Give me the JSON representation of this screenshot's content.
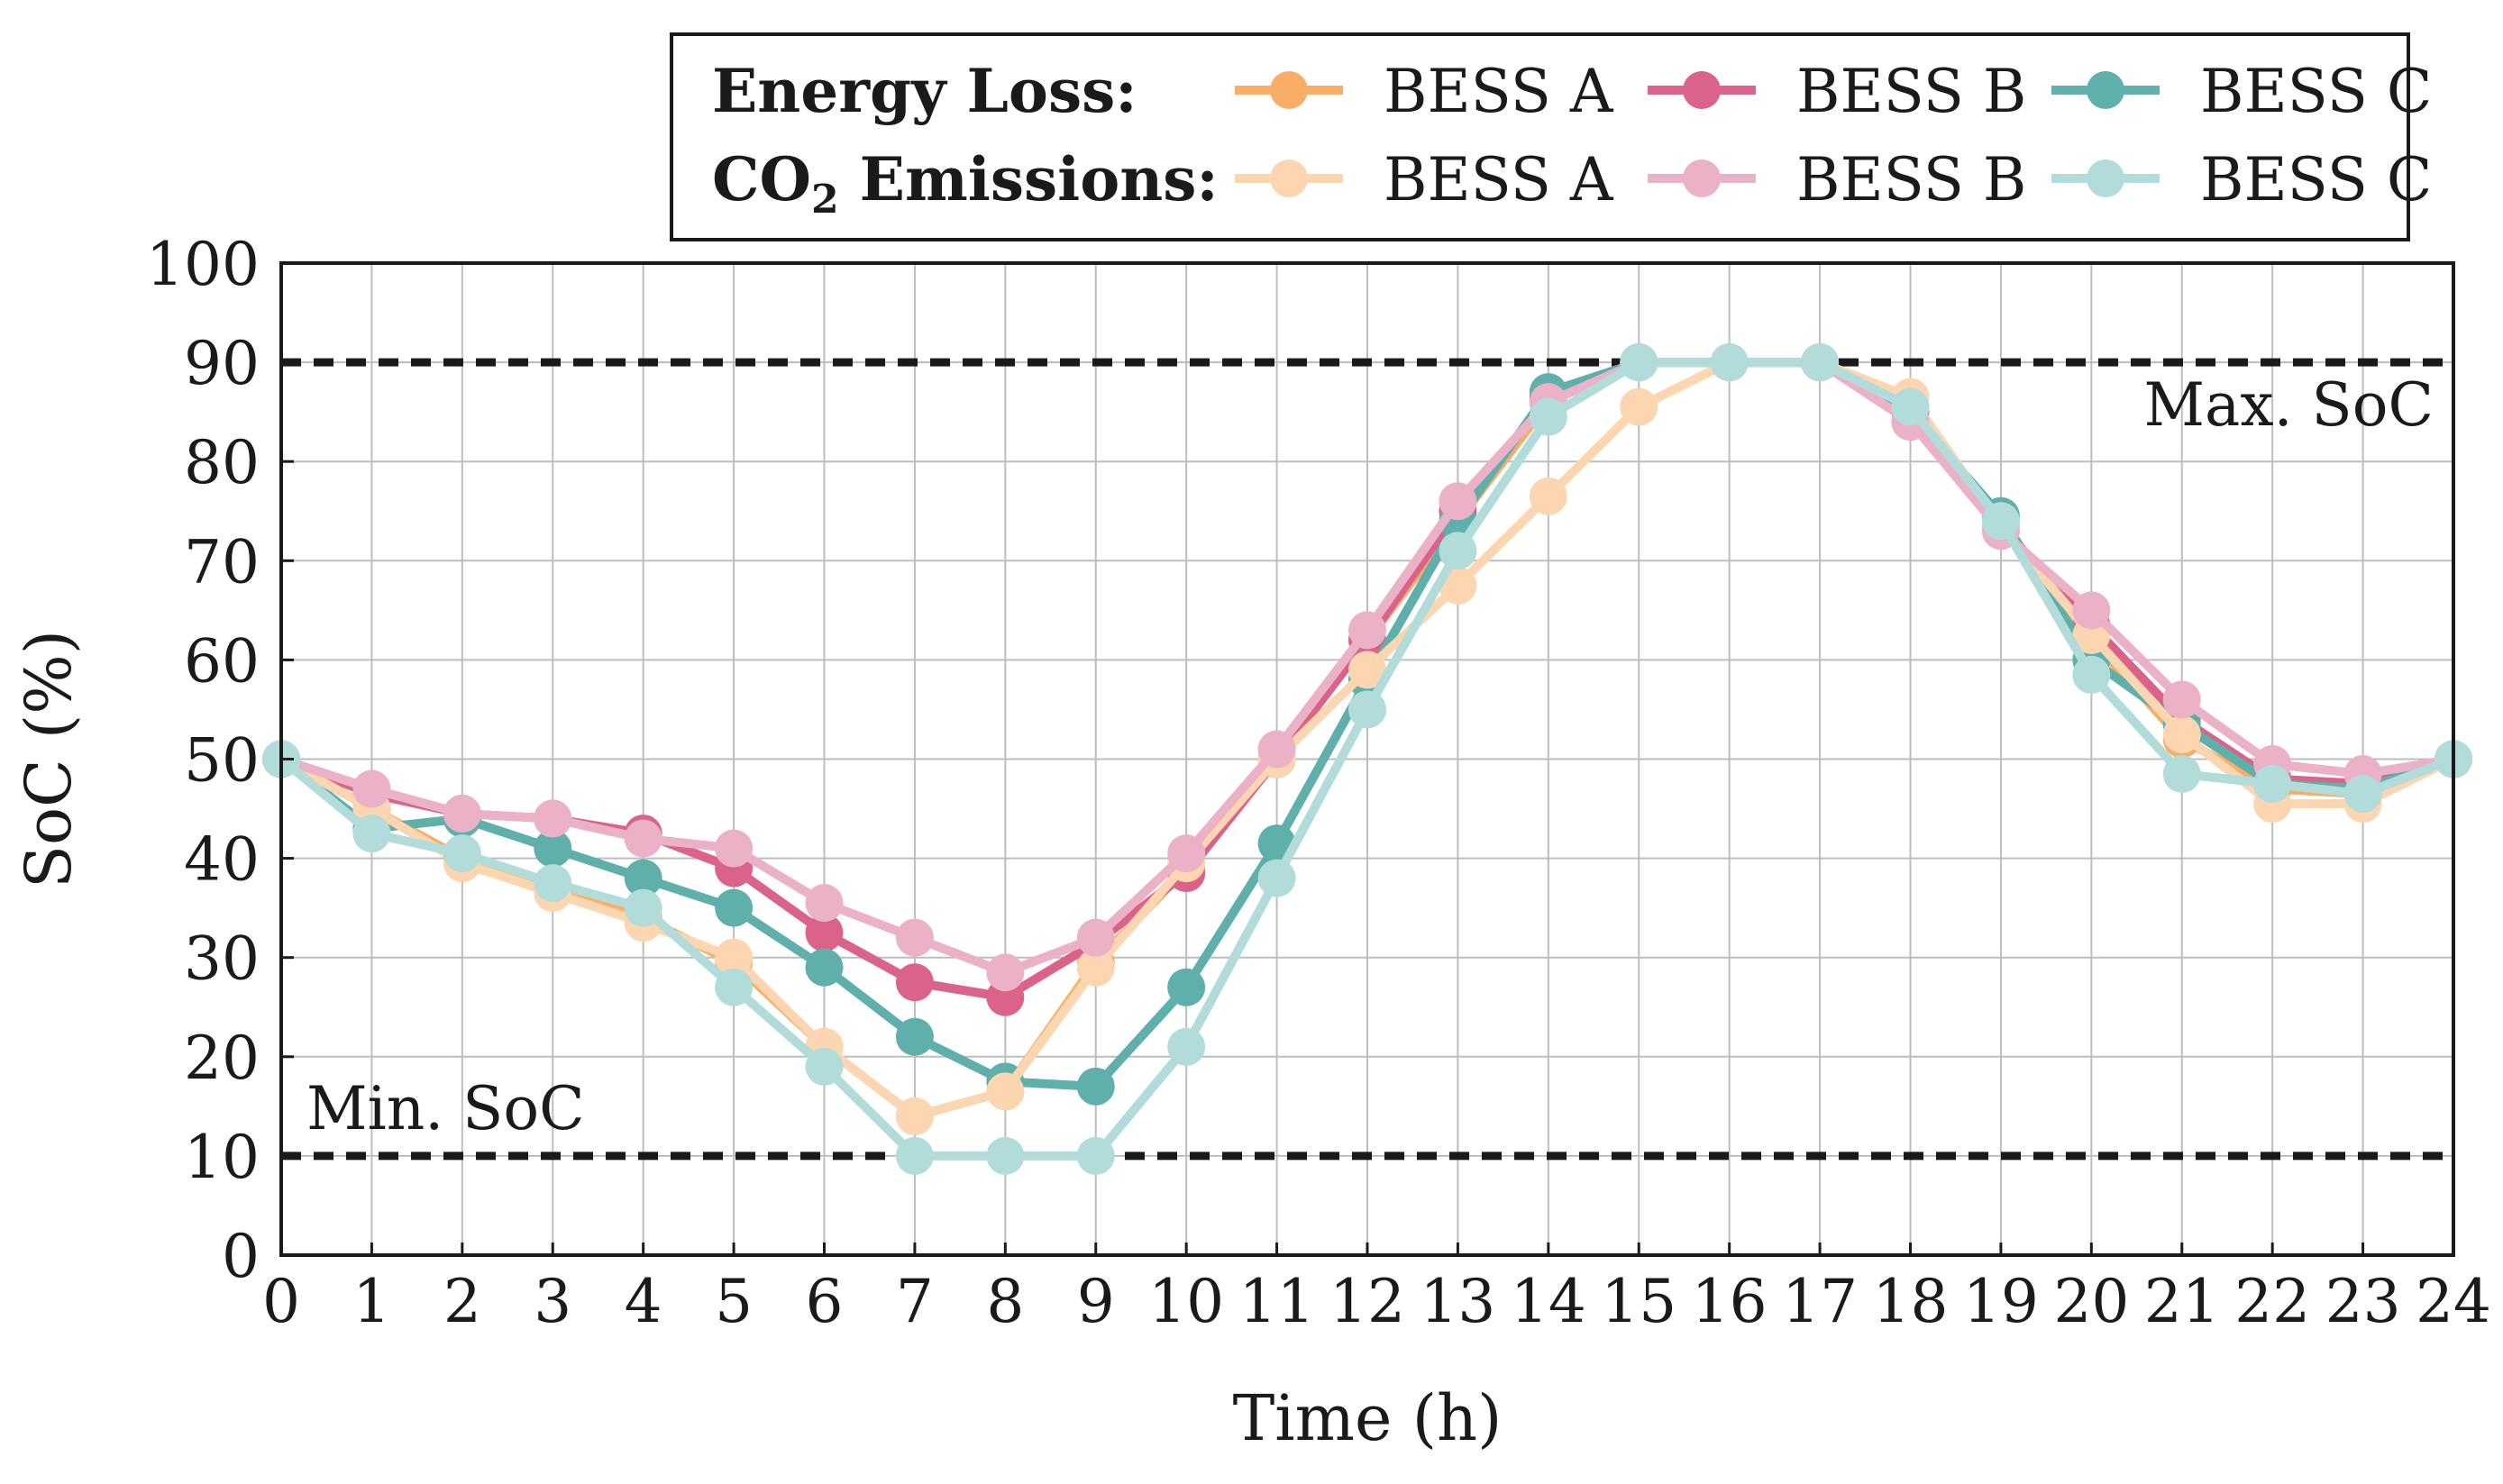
{
  "chart_data": {
    "type": "line",
    "title": "",
    "xlabel": "Time (h)",
    "ylabel": "SoC (%)",
    "xlim": [
      0,
      24
    ],
    "ylim": [
      0,
      100
    ],
    "x_ticks": [
      0,
      1,
      2,
      3,
      4,
      5,
      6,
      7,
      8,
      9,
      10,
      11,
      12,
      13,
      14,
      15,
      16,
      17,
      18,
      19,
      20,
      21,
      22,
      23,
      24
    ],
    "y_ticks": [
      0,
      10,
      20,
      30,
      40,
      50,
      60,
      70,
      80,
      90,
      100
    ],
    "grid": true,
    "legend": {
      "placement": "top-right",
      "groups": [
        {
          "label_main": "Energy Loss:",
          "label_sub": ""
        },
        {
          "label_main": "CO",
          "label_sub": "2",
          "label_tail": " Emissions:"
        }
      ]
    },
    "reference_lines": [
      {
        "name": "max-soc",
        "y": 90,
        "label": "Max. SoC",
        "label_position": "right"
      },
      {
        "name": "min-soc",
        "y": 10,
        "label": "Min. SoC",
        "label_position": "left"
      }
    ],
    "x": [
      0,
      1,
      2,
      3,
      4,
      5,
      6,
      7,
      8,
      9,
      10,
      11,
      12,
      13,
      14,
      15,
      16,
      17,
      18,
      19,
      20,
      21,
      22,
      23,
      24
    ],
    "series": [
      {
        "name": "BESS A",
        "group": "Energy Loss:",
        "color": "#f9ae68",
        "values": [
          50,
          45,
          40,
          37,
          34,
          29.5,
          21,
          14,
          16.5,
          29.5,
          39,
          50,
          62,
          74,
          86,
          90,
          90,
          90,
          85,
          74,
          62,
          52,
          47,
          46.5,
          50
        ]
      },
      {
        "name": "BESS B",
        "group": "Energy Loss:",
        "color": "#db6288",
        "values": [
          50,
          46.5,
          44.5,
          44,
          42.5,
          39,
          32.5,
          27.5,
          26,
          31.5,
          38.5,
          50,
          62,
          75,
          86.5,
          90,
          90,
          90,
          84,
          73.5,
          63.5,
          54,
          48,
          47.5,
          50
        ]
      },
      {
        "name": "BESS C",
        "group": "Energy Loss:",
        "color": "#5fb0ab",
        "values": [
          50,
          43,
          44,
          41,
          38,
          35,
          29,
          22,
          17.5,
          17,
          27,
          41.5,
          58,
          74,
          87,
          90,
          90,
          90,
          85,
          74.5,
          60,
          53.5,
          47.5,
          47,
          50
        ]
      },
      {
        "name": "BESS A",
        "group": "CO2 Emissions:",
        "color": "#fcd5b1",
        "values": [
          50,
          45,
          39.5,
          36.5,
          33.5,
          30,
          21,
          14,
          16.5,
          29,
          39.5,
          50,
          59,
          67.5,
          76.5,
          85.5,
          90,
          90,
          86.5,
          73.5,
          62.5,
          52.5,
          45.5,
          45.5,
          50
        ]
      },
      {
        "name": "BESS B",
        "group": "CO2 Emissions:",
        "color": "#ebb1c7",
        "values": [
          50,
          47,
          44.5,
          44,
          42,
          41,
          35.5,
          32,
          28.5,
          32,
          40.5,
          51,
          63,
          76,
          86,
          90,
          90,
          90,
          84,
          73,
          65,
          56,
          49.5,
          48.5,
          50
        ]
      },
      {
        "name": "BESS C",
        "group": "CO2 Emissions:",
        "color": "#b2dcda",
        "values": [
          50,
          42.5,
          40.5,
          37.5,
          35,
          27,
          19,
          10,
          10,
          10,
          21,
          38,
          55,
          71,
          84.5,
          90,
          90,
          90,
          85.5,
          74,
          58.5,
          48.5,
          47.5,
          46.5,
          50
        ]
      }
    ]
  }
}
